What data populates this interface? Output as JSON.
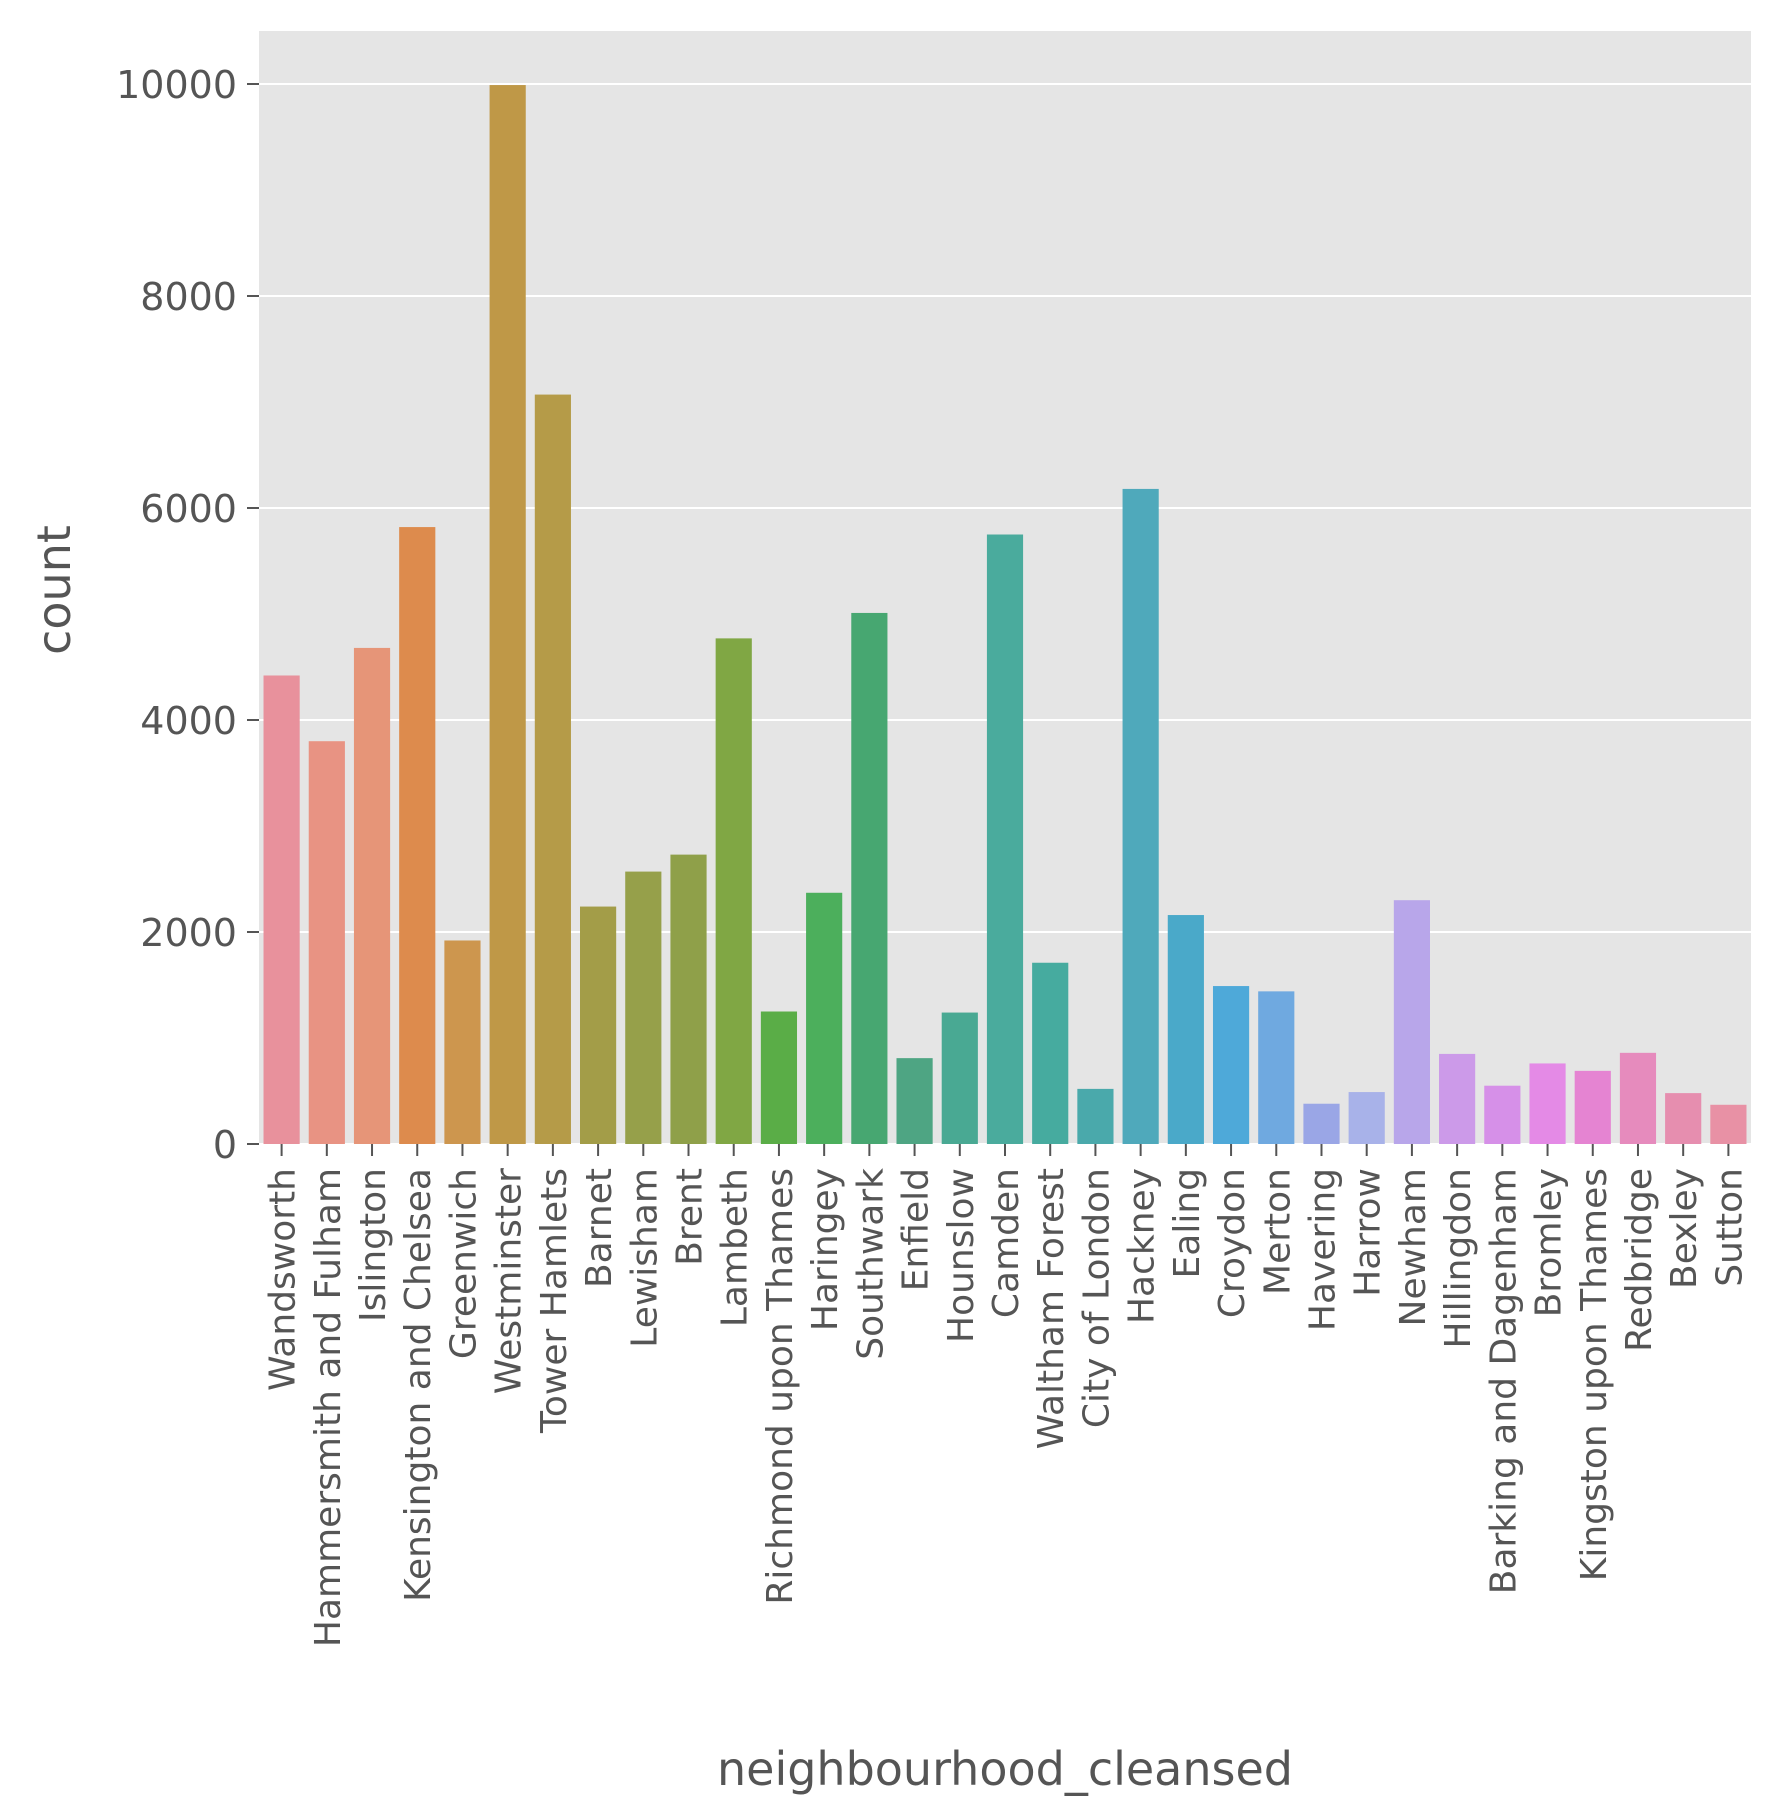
{
  "chart_data": {
    "type": "bar",
    "xlabel": "neighbourhood_cleansed",
    "ylabel": "count",
    "ylim": [
      0,
      10500
    ],
    "yticks": [
      0,
      2000,
      4000,
      6000,
      8000,
      10000
    ],
    "grid": true,
    "categories": [
      "Wandsworth",
      "Hammersmith and Fulham",
      "Islington",
      "Kensington and Chelsea",
      "Greenwich",
      "Westminster",
      "Tower Hamlets",
      "Barnet",
      "Lewisham",
      "Brent",
      "Lambeth",
      "Richmond upon Thames",
      "Haringey",
      "Southwark",
      "Enfield",
      "Hounslow",
      "Camden",
      "Waltham Forest",
      "City of London",
      "Hackney",
      "Ealing",
      "Croydon",
      "Merton",
      "Havering",
      "Harrow",
      "Newham",
      "Hillingdon",
      "Barking and Dagenham",
      "Bromley",
      "Kingston upon Thames",
      "Redbridge",
      "Bexley",
      "Sutton"
    ],
    "values": [
      4420,
      3800,
      4680,
      5820,
      1920,
      9990,
      7070,
      2240,
      2570,
      2730,
      4770,
      1250,
      2370,
      5010,
      810,
      1240,
      5750,
      1710,
      520,
      6180,
      2160,
      1490,
      1440,
      380,
      490,
      2300,
      850,
      550,
      760,
      690,
      860,
      480,
      370
    ],
    "colors": [
      "#e8919c",
      "#e89383",
      "#e69578",
      "#dd8b4d",
      "#cd964e",
      "#bf9847",
      "#b59b48",
      "#a39d48",
      "#96a04a",
      "#8fa049",
      "#80a744",
      "#5aad47",
      "#4caf5c",
      "#47a771",
      "#4ea583",
      "#49a993",
      "#4aab9d",
      "#46ab9f",
      "#4aa9ab",
      "#4fa9bb",
      "#4aa9c9",
      "#4ea9d9",
      "#6fa9e0",
      "#9aa6e6",
      "#a8b2e9",
      "#b8a6ea",
      "#cc9ae9",
      "#d690e8",
      "#e48ae6",
      "#e584d2",
      "#e68bbd",
      "#e68eaf",
      "#e891a5"
    ]
  }
}
